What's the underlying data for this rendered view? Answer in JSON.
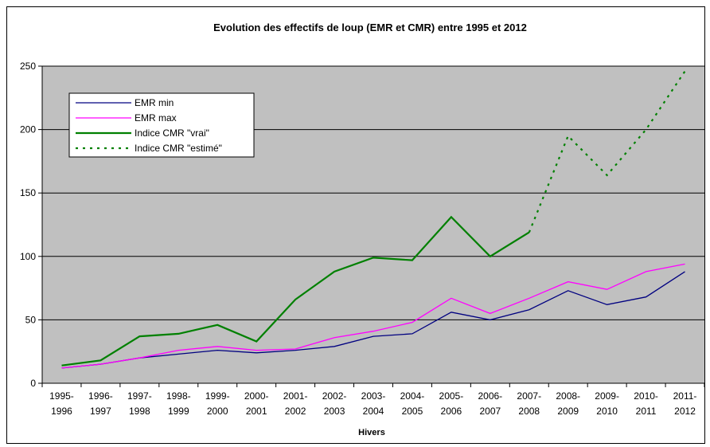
{
  "chart_data": {
    "type": "line",
    "title": "Evolution des effectifs de loup (EMR et CMR) entre 1995 et 2012",
    "xlabel": "Hivers",
    "ylabel": "",
    "ylim": [
      0,
      250
    ],
    "yticks": [
      0,
      50,
      100,
      150,
      200,
      250
    ],
    "grid": true,
    "legend_position": "top-left",
    "categories": [
      [
        "1995-",
        "1996"
      ],
      [
        "1996-",
        "1997"
      ],
      [
        "1997-",
        "1998"
      ],
      [
        "1998-",
        "1999"
      ],
      [
        "1999-",
        "2000"
      ],
      [
        "2000-",
        "2001"
      ],
      [
        "2001-",
        "2002"
      ],
      [
        "2002-",
        "2003"
      ],
      [
        "2003-",
        "2004"
      ],
      [
        "2004-",
        "2005"
      ],
      [
        "2005-",
        "2006"
      ],
      [
        "2006-",
        "2007"
      ],
      [
        "2007-",
        "2008"
      ],
      [
        "2008-",
        "2009"
      ],
      [
        "2009-",
        "2010"
      ],
      [
        "2010-",
        "2011"
      ],
      [
        "2011-",
        "2012"
      ]
    ],
    "series": [
      {
        "name": "EMR min",
        "color": "#000080",
        "dash": false,
        "values": [
          12,
          15,
          20,
          23,
          26,
          24,
          26,
          29,
          37,
          39,
          56,
          50,
          58,
          73,
          62,
          68,
          88
        ]
      },
      {
        "name": "EMR max",
        "color": "#ff00ff",
        "dash": false,
        "values": [
          12,
          15,
          20,
          26,
          29,
          26,
          27,
          36,
          41,
          48,
          67,
          55,
          67,
          80,
          74,
          88,
          94
        ]
      },
      {
        "name": "Indice CMR \"vrai\"",
        "color": "#008000",
        "dash": false,
        "values": [
          14,
          18,
          37,
          39,
          46,
          33,
          66,
          88,
          99,
          97,
          131,
          100,
          119,
          null,
          null,
          null,
          null
        ]
      },
      {
        "name": "Indice CMR \"estimé\"",
        "color": "#008000",
        "dash": true,
        "values": [
          null,
          null,
          null,
          null,
          null,
          null,
          null,
          null,
          null,
          null,
          null,
          null,
          119,
          195,
          164,
          200,
          246
        ]
      }
    ],
    "colors": {
      "plot_background": "#c0c0c0",
      "gridline": "#000000"
    }
  }
}
